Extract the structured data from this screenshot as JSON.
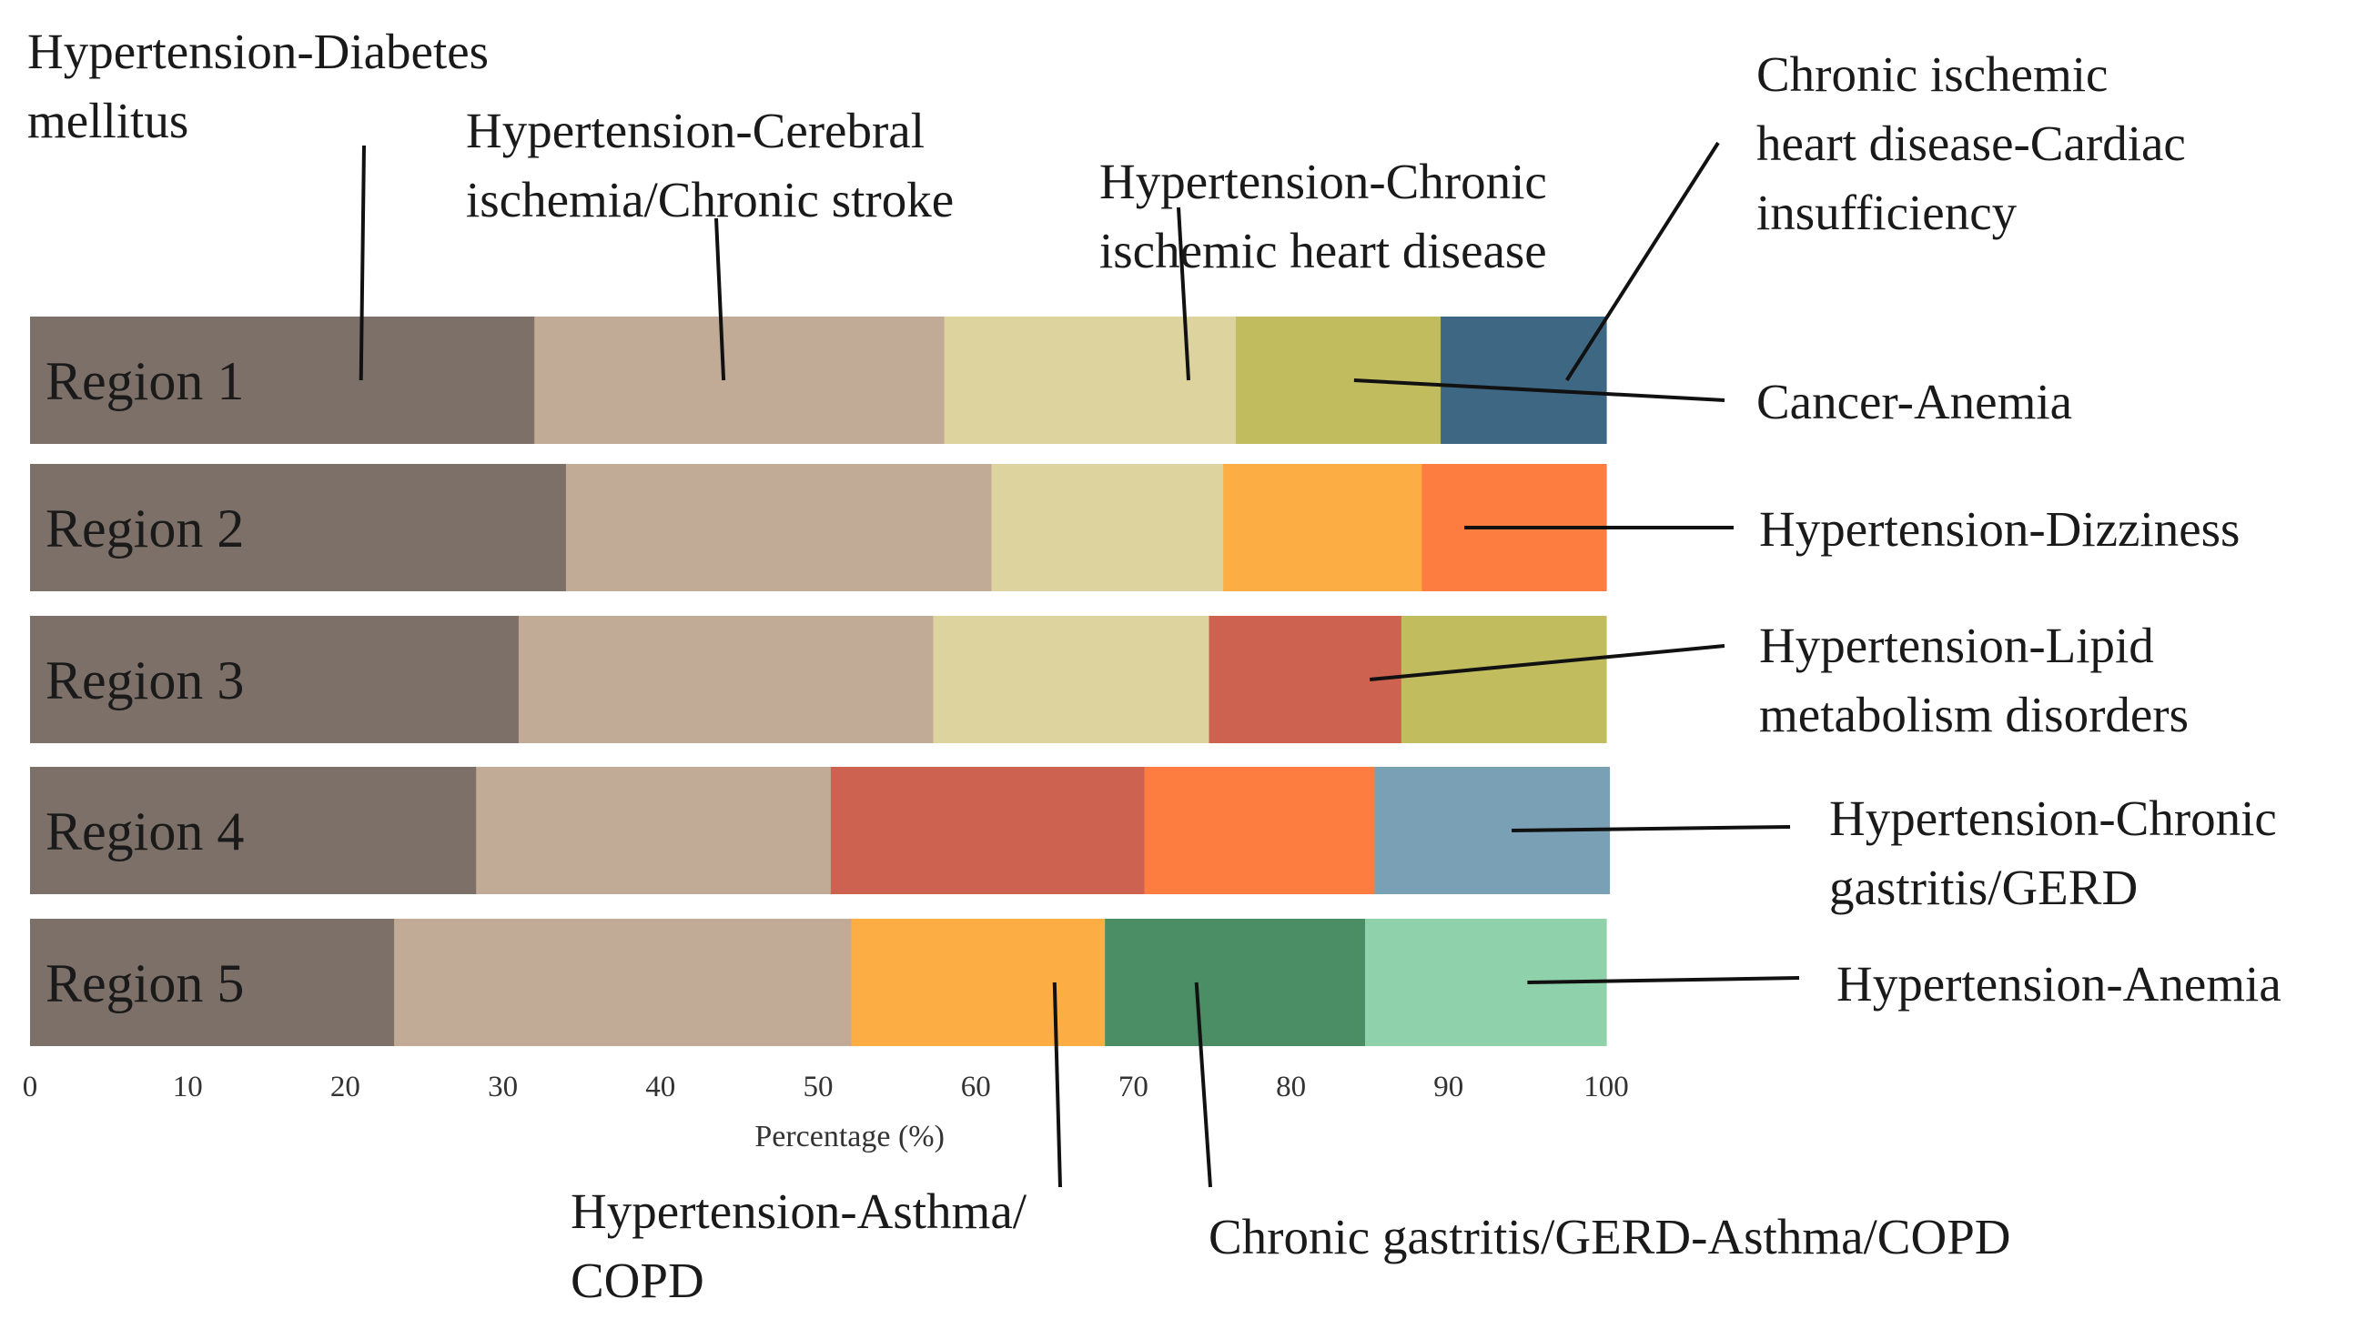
{
  "chart_data": {
    "type": "bar",
    "orientation": "horizontal",
    "stacked": true,
    "xlabel": "Percentage (%)",
    "xlim": [
      0,
      100
    ],
    "xticks": [
      0,
      10,
      20,
      30,
      40,
      50,
      60,
      70,
      80,
      90,
      100
    ],
    "grid": false,
    "categories": [
      "Region 1",
      "Region 2",
      "Region 3",
      "Region 4",
      "Region 5"
    ],
    "series": [
      {
        "name": "Hypertension-Diabetes mellitus",
        "color": "#7d7068"
      },
      {
        "name": "Hypertension-Cerebral ischemia/Chronic stroke",
        "color": "#c2ab96"
      },
      {
        "name": "Hypertension-Chronic ischemic heart disease",
        "color": "#ddd39e"
      },
      {
        "name": "Chronic ischemic heart disease-Cardiac insufficiency",
        "color": "#3d6783"
      },
      {
        "name": "Cancer-Anemia",
        "color": "#c1bd5f"
      },
      {
        "name": "Hypertension-Dizziness",
        "color": "#fd7c3f"
      },
      {
        "name": "Hypertension-Lipid metabolism disorders",
        "color": "#cd6250"
      },
      {
        "name": "Hypertension-Chronic gastritis/GERD",
        "color": "#79a0b4"
      },
      {
        "name": "Hypertension-Anemia",
        "color": "#8fd1ab"
      },
      {
        "name": "Hypertension-Asthma/COPD",
        "color": "#fcae45"
      },
      {
        "name": "Chronic gastritis/GERD-Asthma/COPD",
        "color": "#4b8d64"
      }
    ],
    "stacks": [
      {
        "region": "Region 1",
        "segments": [
          {
            "series": "Hypertension-Diabetes mellitus",
            "value": 32
          },
          {
            "series": "Hypertension-Cerebral ischemia/Chronic stroke",
            "value": 26
          },
          {
            "series": "Hypertension-Chronic ischemic heart disease",
            "value": 18.5
          },
          {
            "series": "Cancer-Anemia",
            "value": 13
          },
          {
            "series": "Chronic ischemic heart disease-Cardiac insufficiency",
            "value": 10.5
          }
        ]
      },
      {
        "region": "Region 2",
        "segments": [
          {
            "series": "Hypertension-Diabetes mellitus",
            "value": 34
          },
          {
            "series": "Hypertension-Cerebral ischemia/Chronic stroke",
            "value": 27
          },
          {
            "series": "Hypertension-Chronic ischemic heart disease",
            "value": 14.7
          },
          {
            "series": "Hypertension-Asthma/COPD",
            "value": 12.6
          },
          {
            "series": "Hypertension-Dizziness",
            "value": 11.7
          }
        ]
      },
      {
        "region": "Region 3",
        "segments": [
          {
            "series": "Hypertension-Diabetes mellitus",
            "value": 31
          },
          {
            "series": "Hypertension-Cerebral ischemia/Chronic stroke",
            "value": 26.3
          },
          {
            "series": "Hypertension-Chronic ischemic heart disease",
            "value": 17.5
          },
          {
            "series": "Hypertension-Lipid metabolism disorders",
            "value": 12.2
          },
          {
            "series": "Cancer-Anemia",
            "value": 13
          }
        ]
      },
      {
        "region": "Region 4",
        "segments": [
          {
            "series": "Hypertension-Diabetes mellitus",
            "value": 28.3
          },
          {
            "series": "Hypertension-Cerebral ischemia/Chronic stroke",
            "value": 22.5
          },
          {
            "series": "Hypertension-Lipid metabolism disorders",
            "value": 19.9
          },
          {
            "series": "Hypertension-Dizziness",
            "value": 14.6
          },
          {
            "series": "Hypertension-Chronic gastritis/GERD",
            "value": 14.9
          }
        ]
      },
      {
        "region": "Region 5",
        "segments": [
          {
            "series": "Hypertension-Diabetes mellitus",
            "value": 23.1
          },
          {
            "series": "Hypertension-Cerebral ischemia/Chronic stroke",
            "value": 29
          },
          {
            "series": "Hypertension-Asthma/COPD",
            "value": 16.1
          },
          {
            "series": "Chronic gastritis/GERD-Asthma/COPD",
            "value": 16.5
          },
          {
            "series": "Hypertension-Anemia",
            "value": 15.3
          }
        ]
      }
    ],
    "annotations": [
      {
        "id": "ann-diabetes",
        "lines": [
          "Hypertension-Diabetes",
          "mellitus"
        ],
        "region": "Region 1",
        "x": 21
      },
      {
        "id": "ann-cerebral",
        "lines": [
          "Hypertension-Cerebral",
          "ischemia/Chronic stroke"
        ],
        "region": "Region 1",
        "x": 44
      },
      {
        "id": "ann-chd",
        "lines": [
          "Hypertension-Chronic",
          "ischemic heart disease"
        ],
        "region": "Region 1",
        "x": 73.5
      },
      {
        "id": "ann-cardiac",
        "lines": [
          "Chronic ischemic",
          "heart disease-Cardiac",
          "insufficiency"
        ],
        "region": "Region 1",
        "x": 97.5
      },
      {
        "id": "ann-cancer",
        "lines": [
          "Cancer-Anemia"
        ],
        "region": "Region 1",
        "x": 84
      },
      {
        "id": "ann-dizziness",
        "lines": [
          "Hypertension-Dizziness"
        ],
        "region": "Region 2",
        "x": 91
      },
      {
        "id": "ann-lipid",
        "lines": [
          "Hypertension-Lipid",
          "metabolism disorders"
        ],
        "region": "Region 3",
        "x": 85
      },
      {
        "id": "ann-gerd",
        "lines": [
          "Hypertension-Chronic",
          "gastritis/GERD"
        ],
        "region": "Region 4",
        "x": 94
      },
      {
        "id": "ann-htn-anemia",
        "lines": [
          "Hypertension-Anemia"
        ],
        "region": "Region 5",
        "x": 95
      },
      {
        "id": "ann-asthma",
        "lines": [
          "Hypertension-Asthma/",
          "COPD"
        ],
        "region": "Region 5",
        "x": 65
      },
      {
        "id": "ann-gerd-asthma",
        "lines": [
          "Chronic gastritis/GERD-Asthma/COPD"
        ],
        "region": "Region 5",
        "x": 74
      }
    ]
  }
}
